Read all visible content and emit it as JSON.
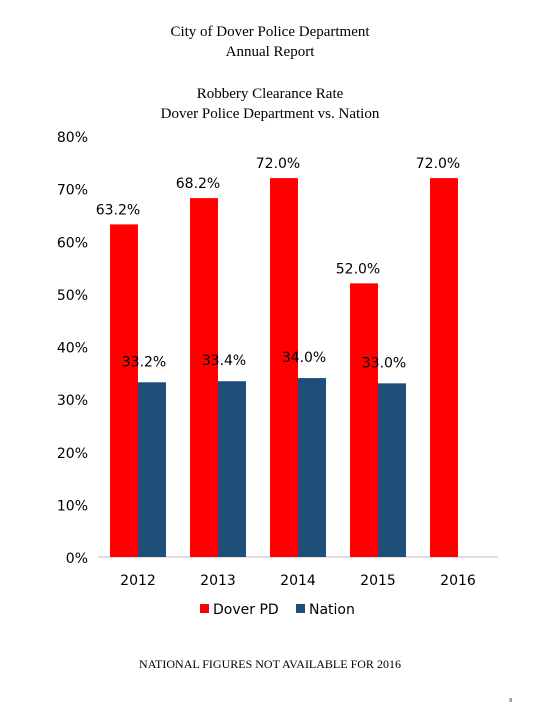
{
  "report": {
    "title_line1": "City of Dover Police Department",
    "title_line2": "Annual Report"
  },
  "chart_data": {
    "type": "bar",
    "title": "Robbery Clearance Rate",
    "subtitle": "Dover Police Department vs. Nation",
    "categories": [
      "2012",
      "2013",
      "2014",
      "2015",
      "2016"
    ],
    "series": [
      {
        "name": "Dover PD",
        "color": "#ff0000",
        "values": [
          63.2,
          68.2,
          72.0,
          52.0,
          72.0
        ],
        "labels": [
          "63.2%",
          "68.2%",
          "72.0%",
          "52.0%",
          "72.0%"
        ]
      },
      {
        "name": "Nation",
        "color": "#1f4e79",
        "values": [
          33.2,
          33.4,
          34.0,
          33.0,
          null
        ],
        "labels": [
          "33.2%",
          "33.4%",
          "34.0%",
          "33.0%",
          ""
        ]
      }
    ],
    "ylim": [
      0,
      80
    ],
    "yticks": [
      0,
      10,
      20,
      30,
      40,
      50,
      60,
      70,
      80
    ],
    "ytick_labels": [
      "0%",
      "10%",
      "20%",
      "30%",
      "40%",
      "50%",
      "60%",
      "70%",
      "80%"
    ],
    "grid": false,
    "legend_position": "bottom"
  },
  "footnote": "NATIONAL FIGURES NOT AVAILABLE FOR 2016",
  "page_number": "9"
}
